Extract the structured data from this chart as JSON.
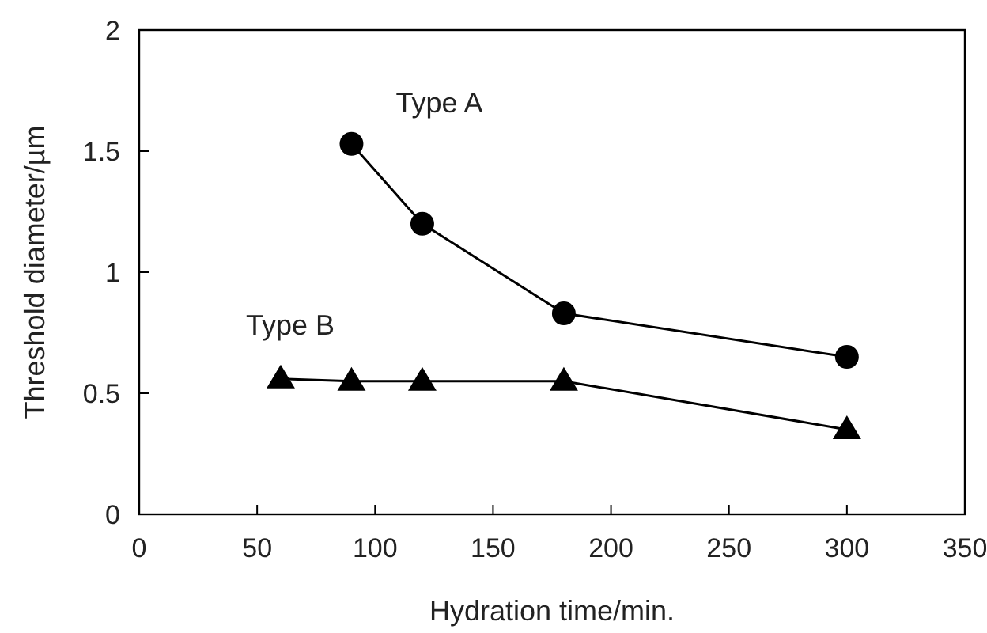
{
  "chart_data": {
    "type": "line",
    "xlabel": "Hydration time/min.",
    "ylabel": "Threshold diameter/µm",
    "xlim": [
      0,
      350
    ],
    "xticks": [
      0,
      50,
      100,
      150,
      200,
      250,
      300,
      350
    ],
    "ylim": [
      0,
      2
    ],
    "yticks": [
      0,
      0.5,
      1,
      1.5,
      2
    ],
    "grid": false,
    "series": [
      {
        "name": "Type A",
        "color": "#000000",
        "marker": "circle",
        "x": [
          90,
          120,
          180,
          300
        ],
        "values": [
          1.53,
          1.2,
          0.83,
          0.65
        ]
      },
      {
        "name": "Type B",
        "color": "#000000",
        "marker": "triangle",
        "x": [
          60,
          90,
          120,
          180,
          300
        ],
        "values": [
          0.56,
          0.55,
          0.55,
          0.55,
          0.35
        ]
      }
    ]
  }
}
